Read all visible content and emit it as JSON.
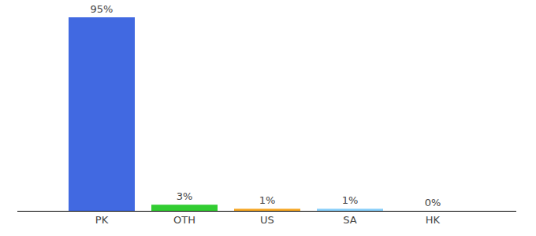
{
  "chart_data": {
    "type": "bar",
    "categories": [
      "PK",
      "OTH",
      "US",
      "SA",
      "HK"
    ],
    "values": [
      95,
      3,
      1,
      1,
      0
    ],
    "value_labels": [
      "95%",
      "3%",
      "1%",
      "1%",
      "0%"
    ],
    "colors": [
      "#4169e1",
      "#32cd32",
      "#f5a623",
      "#87cefa",
      "#9966cc"
    ],
    "ylim": [
      0,
      95
    ],
    "data_labels": true,
    "tick_labels": "x",
    "grid": false
  }
}
